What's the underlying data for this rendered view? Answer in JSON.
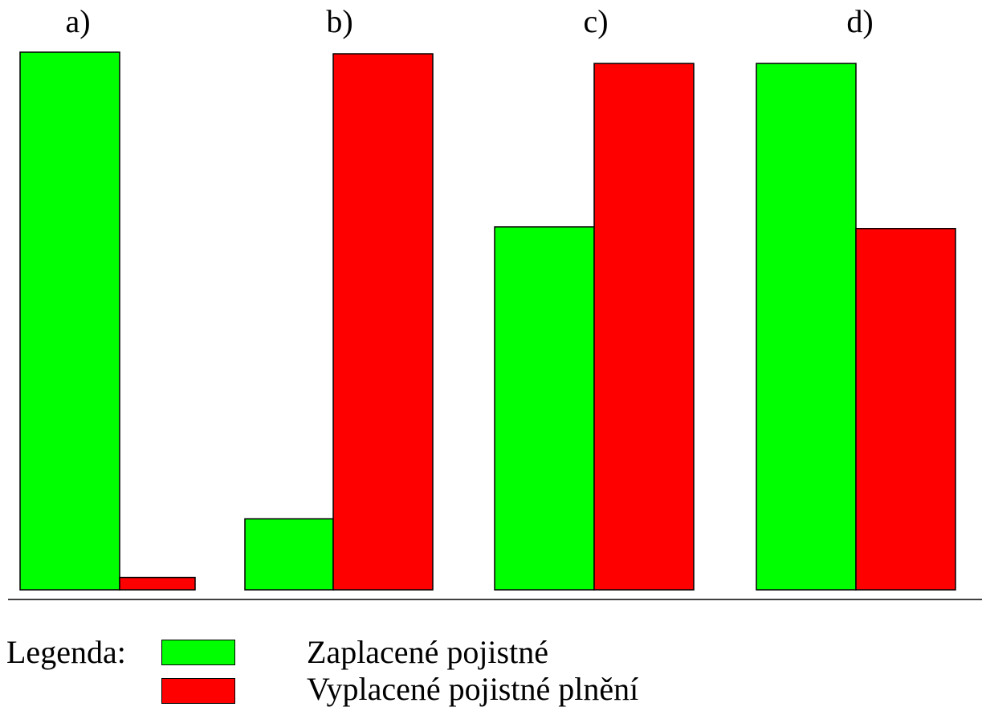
{
  "chart_data": {
    "type": "bar",
    "categories": [
      "a)",
      "b)",
      "c)",
      "d)"
    ],
    "series": [
      {
        "name": "Zaplacené pojistné",
        "color": "#00ff00",
        "values": [
          100,
          13.2,
          67.5,
          97.9
        ]
      },
      {
        "name": "Vyplacené pojistné plnění",
        "color": "#ff0000",
        "values": [
          2.3,
          99.7,
          97.9,
          67.2
        ]
      }
    ],
    "ylim": [
      0,
      100
    ],
    "grid": false,
    "axes": false
  },
  "legend": {
    "title": "Legenda:",
    "entries": [
      {
        "label": "Zaplacené pojistné",
        "color": "#00ff00"
      },
      {
        "label": "Vyplacené pojistné plnění",
        "color": "#ff0000"
      }
    ]
  }
}
